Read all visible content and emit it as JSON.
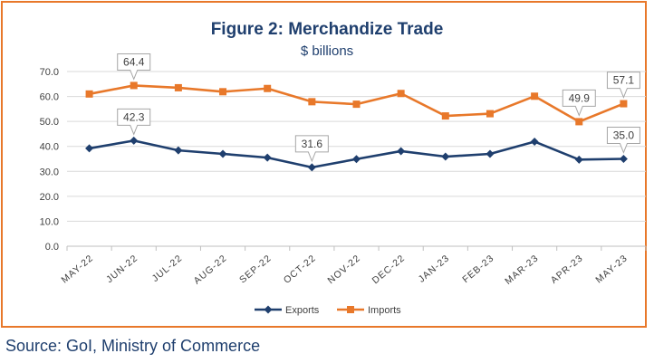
{
  "chart_data": {
    "type": "line",
    "title": "Figure 2: Merchandize Trade",
    "subtitle": "$ billions",
    "xlabel": "",
    "ylabel": "",
    "ylim": [
      0,
      70
    ],
    "yticks": [
      "0.0",
      "10.0",
      "20.0",
      "30.0",
      "40.0",
      "50.0",
      "60.0",
      "70.0"
    ],
    "categories": [
      "MAY-22",
      "JUN-22",
      "JUL-22",
      "AUG-22",
      "SEP-22",
      "OCT-22",
      "NOV-22",
      "DEC-22",
      "JAN-23",
      "FEB-23",
      "MAR-23",
      "APR-23",
      "MAY-23"
    ],
    "grid": true,
    "legend": "bottom",
    "series": [
      {
        "name": "Exports",
        "color": "#1F3F6E",
        "marker": "diamond",
        "values": [
          39.2,
          42.3,
          38.4,
          37.0,
          35.5,
          31.6,
          34.9,
          38.1,
          35.9,
          37.0,
          41.9,
          34.7,
          35.0
        ],
        "labels": [
          {
            "index": 1,
            "text": "42.3"
          },
          {
            "index": 5,
            "text": "31.6"
          },
          {
            "index": 12,
            "text": "35.0"
          }
        ]
      },
      {
        "name": "Imports",
        "color": "#E8782A",
        "marker": "square",
        "values": [
          61.0,
          64.4,
          63.5,
          61.9,
          63.2,
          57.9,
          56.9,
          61.2,
          52.2,
          53.1,
          60.1,
          49.9,
          57.1
        ],
        "labels": [
          {
            "index": 1,
            "text": "64.4"
          },
          {
            "index": 11,
            "text": "49.9"
          },
          {
            "index": 12,
            "text": "57.1"
          }
        ]
      }
    ]
  },
  "source": "Source: GoI, Ministry of Commerce"
}
